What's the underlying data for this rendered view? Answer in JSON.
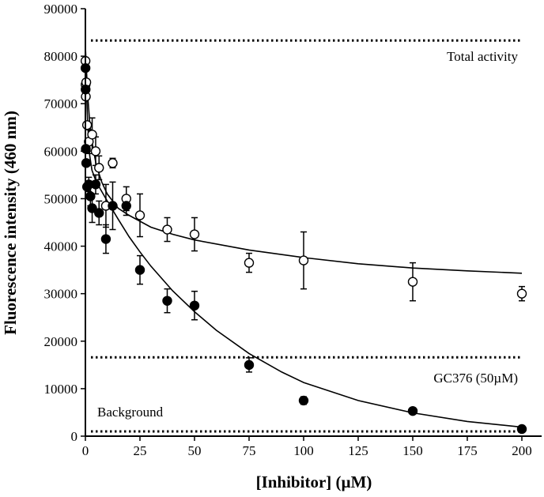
{
  "chart_data": {
    "type": "scatter",
    "xlabel": "[Inhibitor] (µM)",
    "ylabel": "Fluorescence intensity (460 nm)",
    "xlim": [
      0,
      200
    ],
    "ylim": [
      0,
      90000
    ],
    "xticks": [
      0,
      25,
      50,
      75,
      100,
      125,
      150,
      175,
      200
    ],
    "yticks": [
      0,
      10000,
      20000,
      30000,
      40000,
      50000,
      60000,
      70000,
      80000,
      90000
    ],
    "grid": false,
    "reference_lines": [
      {
        "label": "Total activity",
        "y": 83300
      },
      {
        "label": "GC376 (50µM)",
        "y": 16600
      },
      {
        "label": "Background",
        "y": 1000
      }
    ],
    "series": [
      {
        "marker": "open-circle",
        "points": [
          {
            "x": 0.05,
            "y": 79000,
            "err": 0
          },
          {
            "x": 0.1,
            "y": 74000,
            "err": 0
          },
          {
            "x": 0.2,
            "y": 71500,
            "err": 0
          },
          {
            "x": 0.39,
            "y": 74500,
            "err": 0
          },
          {
            "x": 0.78,
            "y": 65500,
            "err": 0
          },
          {
            "x": 1.56,
            "y": 62000,
            "err": 2500
          },
          {
            "x": 3.1,
            "y": 63500,
            "err": 3500
          },
          {
            "x": 4.7,
            "y": 60000,
            "err": 3000
          },
          {
            "x": 6.25,
            "y": 56500,
            "err": 2500
          },
          {
            "x": 9.4,
            "y": 48500,
            "err": 4500
          },
          {
            "x": 12.5,
            "y": 57500,
            "err": 1000
          },
          {
            "x": 18.75,
            "y": 50000,
            "err": 2500
          },
          {
            "x": 25,
            "y": 46500,
            "err": 4500
          },
          {
            "x": 37.5,
            "y": 43500,
            "err": 2500
          },
          {
            "x": 50,
            "y": 42500,
            "err": 3500
          },
          {
            "x": 75,
            "y": 36500,
            "err": 2000
          },
          {
            "x": 100,
            "y": 37000,
            "err": 6000
          },
          {
            "x": 150,
            "y": 32500,
            "err": 4000
          },
          {
            "x": 200,
            "y": 30000,
            "err": 1500
          }
        ],
        "fit": [
          {
            "x": 0,
            "y": 82000
          },
          {
            "x": 1,
            "y": 72000
          },
          {
            "x": 2,
            "y": 66000
          },
          {
            "x": 3,
            "y": 62000
          },
          {
            "x": 5,
            "y": 57000
          },
          {
            "x": 7.5,
            "y": 53500
          },
          {
            "x": 10,
            "y": 51000
          },
          {
            "x": 15,
            "y": 48000
          },
          {
            "x": 20,
            "y": 46500
          },
          {
            "x": 30,
            "y": 44000
          },
          {
            "x": 40,
            "y": 42500
          },
          {
            "x": 50,
            "y": 41300
          },
          {
            "x": 75,
            "y": 39200
          },
          {
            "x": 100,
            "y": 37600
          },
          {
            "x": 125,
            "y": 36300
          },
          {
            "x": 150,
            "y": 35400
          },
          {
            "x": 175,
            "y": 34800
          },
          {
            "x": 200,
            "y": 34300
          }
        ]
      },
      {
        "marker": "filled-circle",
        "points": [
          {
            "x": 0.05,
            "y": 77500,
            "err": 0
          },
          {
            "x": 0.1,
            "y": 73000,
            "err": 0
          },
          {
            "x": 0.2,
            "y": 60500,
            "err": 0
          },
          {
            "x": 0.39,
            "y": 57500,
            "err": 0
          },
          {
            "x": 0.78,
            "y": 52500,
            "err": 0
          },
          {
            "x": 1.56,
            "y": 53000,
            "err": 1500
          },
          {
            "x": 2.3,
            "y": 50500,
            "err": 2000
          },
          {
            "x": 3.1,
            "y": 48000,
            "err": 3000
          },
          {
            "x": 4.7,
            "y": 53000,
            "err": 2000
          },
          {
            "x": 6.25,
            "y": 47000,
            "err": 2500
          },
          {
            "x": 9.4,
            "y": 41500,
            "err": 3000
          },
          {
            "x": 12.5,
            "y": 48500,
            "err": 5000
          },
          {
            "x": 18.75,
            "y": 48500,
            "err": 2000
          },
          {
            "x": 25,
            "y": 35000,
            "err": 3000
          },
          {
            "x": 37.5,
            "y": 28500,
            "err": 2500
          },
          {
            "x": 50,
            "y": 27500,
            "err": 3000
          },
          {
            "x": 75,
            "y": 15000,
            "err": 1500
          },
          {
            "x": 100,
            "y": 7500,
            "err": 800
          },
          {
            "x": 150,
            "y": 5300,
            "err": 0
          },
          {
            "x": 200,
            "y": 1500,
            "err": 0
          }
        ],
        "fit": [
          {
            "x": 0,
            "y": 80000
          },
          {
            "x": 1,
            "y": 66000
          },
          {
            "x": 2,
            "y": 59000
          },
          {
            "x": 3,
            "y": 56000
          },
          {
            "x": 5,
            "y": 53500
          },
          {
            "x": 7.5,
            "y": 51500
          },
          {
            "x": 10,
            "y": 49500
          },
          {
            "x": 15,
            "y": 45700
          },
          {
            "x": 20,
            "y": 42000
          },
          {
            "x": 25,
            "y": 38800
          },
          {
            "x": 30,
            "y": 35800
          },
          {
            "x": 40,
            "y": 30600
          },
          {
            "x": 50,
            "y": 26200
          },
          {
            "x": 60,
            "y": 22300
          },
          {
            "x": 75,
            "y": 17400
          },
          {
            "x": 90,
            "y": 13500
          },
          {
            "x": 100,
            "y": 11300
          },
          {
            "x": 125,
            "y": 7500
          },
          {
            "x": 150,
            "y": 4900
          },
          {
            "x": 175,
            "y": 3100
          },
          {
            "x": 200,
            "y": 1900
          }
        ]
      }
    ]
  }
}
